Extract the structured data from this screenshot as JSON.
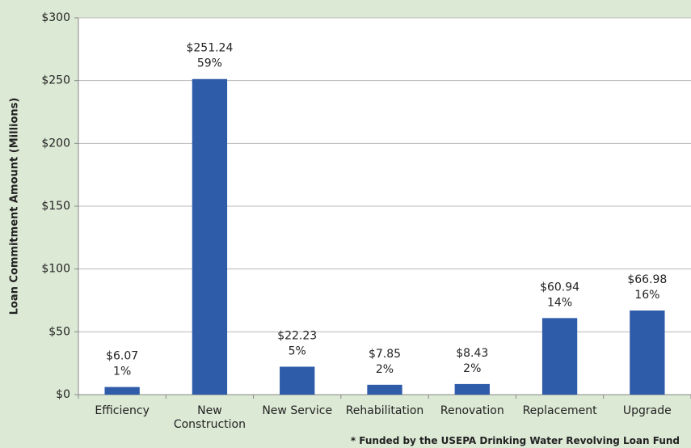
{
  "chart_data": {
    "type": "bar",
    "y_label": "Loan Commitment Amount (Millions)",
    "footnote": "* Funded by the USEPA Drinking Water Revolving Loan Fund",
    "categories": [
      "Efficiency",
      "New Construction",
      "New Service",
      "Rehabilitation",
      "Renovation",
      "Replacement",
      "Upgrade"
    ],
    "values": [
      6.07,
      251.24,
      22.23,
      7.85,
      8.43,
      60.94,
      66.98
    ],
    "value_labels": [
      "$6.07",
      "$251.24",
      "$22.23",
      "$7.85",
      "$8.43",
      "$60.94",
      "$66.98"
    ],
    "shares": [
      1,
      59,
      5,
      2,
      2,
      14,
      16
    ],
    "share_labels": [
      "1%",
      "59%",
      "5%",
      "2%",
      "2%",
      "14%",
      "16%"
    ],
    "color": "#2e5ca8",
    "ylim": [
      0,
      300
    ],
    "yticks": [
      {
        "value": 0,
        "label": "$0"
      },
      {
        "value": 50,
        "label": "$50"
      },
      {
        "value": 100,
        "label": "$100"
      },
      {
        "value": 150,
        "label": "$150"
      },
      {
        "value": 200,
        "label": "$200"
      },
      {
        "value": 250,
        "label": "$250"
      },
      {
        "value": 300,
        "label": "$300"
      }
    ],
    "grid": true
  }
}
